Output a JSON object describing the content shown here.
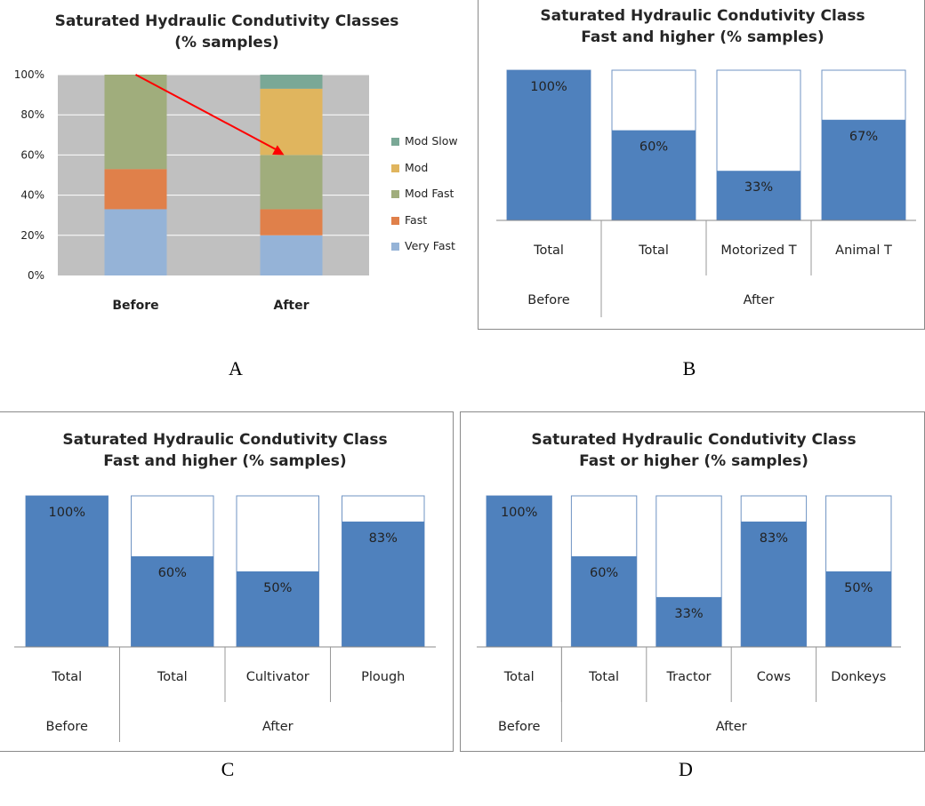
{
  "panels": {
    "A": {
      "label": "A",
      "chart_data": {
        "type": "bar",
        "stacked": true,
        "title": "Saturated Hydraulic Condutivity Classes",
        "subtitle": "(% samples)",
        "categories": [
          "Before",
          "After"
        ],
        "series": [
          {
            "name": "Very Fast",
            "values": [
              33,
              20
            ],
            "color": "#95b3d7"
          },
          {
            "name": "Fast",
            "values": [
              20,
              13
            ],
            "color": "#e0804a"
          },
          {
            "name": "Mod Fast",
            "values": [
              47,
              27
            ],
            "color": "#a0ad7c"
          },
          {
            "name": "Mod",
            "values": [
              0,
              33
            ],
            "color": "#e0b55e"
          },
          {
            "name": "Mod Slow",
            "values": [
              0,
              7
            ],
            "color": "#7aa896"
          }
        ],
        "ylim": [
          0,
          100
        ],
        "yticks": [
          "0%",
          "20%",
          "40%",
          "60%",
          "80%",
          "100%"
        ],
        "grid": true,
        "legend": "right",
        "legend_order": [
          "Mod Slow",
          "Mod",
          "Mod Fast",
          "Fast",
          "Very Fast"
        ],
        "annotation": "red arrow from Before top (100%) to After Mod Fast top (60%)"
      }
    },
    "B": {
      "label": "B",
      "chart_data": {
        "type": "bar",
        "title": "Saturated Hydraulic Condutivity Class",
        "subtitle": "Fast and higher (% samples)",
        "categories": [
          "Total",
          "Total",
          "Motorized T",
          "Animal T"
        ],
        "groups": [
          {
            "name": "Before",
            "span": 1
          },
          {
            "name": "After",
            "span": 3
          }
        ],
        "values": [
          100,
          60,
          33,
          67
        ],
        "labels": [
          "100%",
          "60%",
          "33%",
          "67%"
        ],
        "ylim": [
          0,
          100
        ],
        "color": "#4f81bd"
      }
    },
    "C": {
      "label": "C",
      "chart_data": {
        "type": "bar",
        "title": "Saturated Hydraulic Condutivity Class",
        "subtitle": "Fast and higher (% samples)",
        "categories": [
          "Total",
          "Total",
          "Cultivator",
          "Plough"
        ],
        "groups": [
          {
            "name": "Before",
            "span": 1
          },
          {
            "name": "After",
            "span": 3
          }
        ],
        "values": [
          100,
          60,
          50,
          83
        ],
        "labels": [
          "100%",
          "60%",
          "50%",
          "83%"
        ],
        "ylim": [
          0,
          100
        ],
        "color": "#4f81bd"
      }
    },
    "D": {
      "label": "D",
      "chart_data": {
        "type": "bar",
        "title": "Saturated Hydraulic Condutivity Class",
        "subtitle": "Fast or higher (% samples)",
        "categories": [
          "Total",
          "Total",
          "Tractor",
          "Cows",
          "Donkeys"
        ],
        "groups": [
          {
            "name": "Before",
            "span": 1
          },
          {
            "name": "After",
            "span": 4
          }
        ],
        "values": [
          100,
          60,
          33,
          83,
          50
        ],
        "labels": [
          "100%",
          "60%",
          "33%",
          "83%",
          "50%"
        ],
        "ylim": [
          0,
          100
        ],
        "color": "#4f81bd"
      }
    }
  }
}
